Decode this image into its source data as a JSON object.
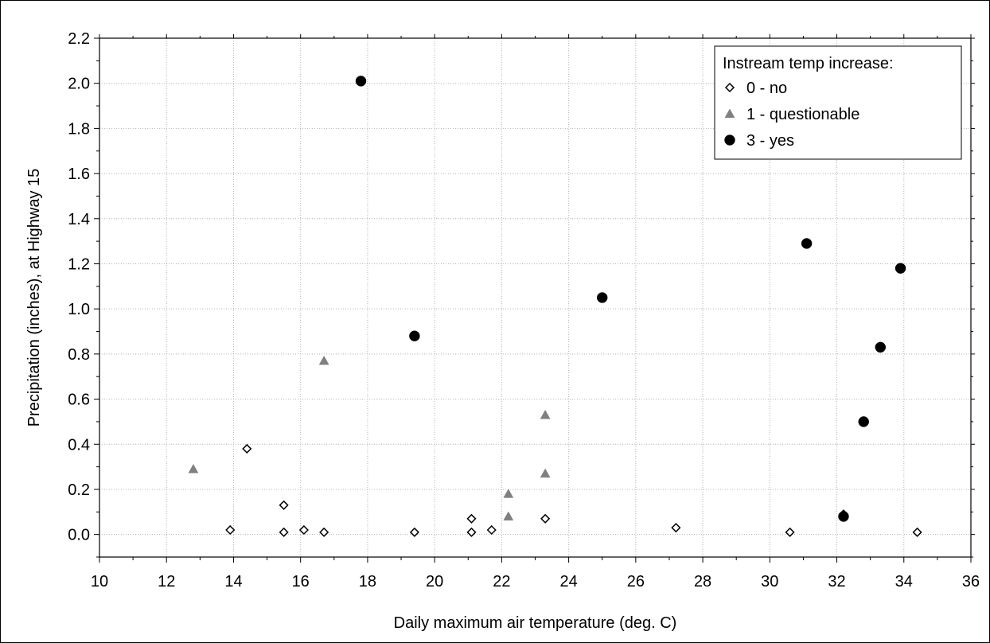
{
  "chart_data": {
    "type": "scatter",
    "title": "",
    "xlabel": "Daily maximum air temperature (deg. C)",
    "ylabel": "Precipitation (inches), at Highway 15",
    "xlim": [
      10,
      36
    ],
    "ylim": [
      -0.1,
      2.2
    ],
    "xticks": [
      "10",
      "12",
      "14",
      "16",
      "18",
      "20",
      "22",
      "24",
      "26",
      "28",
      "30",
      "32",
      "34",
      "36"
    ],
    "yticks": [
      "0.0",
      "0.2",
      "0.4",
      "0.6",
      "0.8",
      "1.0",
      "1.2",
      "1.4",
      "1.6",
      "1.8",
      "2.0",
      "2.2"
    ],
    "grid": true,
    "legend": {
      "title": "Instream temp increase:",
      "position": "top-right"
    },
    "series": [
      {
        "name": "0 - no",
        "marker": "diamond-open",
        "color": "#000000",
        "points": [
          {
            "x": 13.9,
            "y": 0.02
          },
          {
            "x": 14.4,
            "y": 0.38
          },
          {
            "x": 15.5,
            "y": 0.13
          },
          {
            "x": 15.5,
            "y": 0.01
          },
          {
            "x": 16.1,
            "y": 0.02
          },
          {
            "x": 16.7,
            "y": 0.01
          },
          {
            "x": 19.4,
            "y": 0.01
          },
          {
            "x": 21.1,
            "y": 0.07
          },
          {
            "x": 21.1,
            "y": 0.01
          },
          {
            "x": 21.7,
            "y": 0.02
          },
          {
            "x": 23.3,
            "y": 0.07
          },
          {
            "x": 27.2,
            "y": 0.03
          },
          {
            "x": 30.6,
            "y": 0.01
          },
          {
            "x": 32.2,
            "y": 0.09
          },
          {
            "x": 34.4,
            "y": 0.01
          }
        ]
      },
      {
        "name": "1 - questionable",
        "marker": "triangle",
        "color": "#808080",
        "points": [
          {
            "x": 12.8,
            "y": 0.29
          },
          {
            "x": 16.7,
            "y": 0.77
          },
          {
            "x": 22.2,
            "y": 0.18
          },
          {
            "x": 22.2,
            "y": 0.08
          },
          {
            "x": 23.3,
            "y": 0.53
          },
          {
            "x": 23.3,
            "y": 0.27
          }
        ]
      },
      {
        "name": "3 - yes",
        "marker": "circle",
        "color": "#000000",
        "points": [
          {
            "x": 17.8,
            "y": 2.01
          },
          {
            "x": 19.4,
            "y": 0.88
          },
          {
            "x": 25.0,
            "y": 1.05
          },
          {
            "x": 31.1,
            "y": 1.29
          },
          {
            "x": 32.2,
            "y": 0.08
          },
          {
            "x": 32.8,
            "y": 0.5
          },
          {
            "x": 33.3,
            "y": 0.83
          },
          {
            "x": 33.9,
            "y": 1.18
          }
        ]
      }
    ]
  }
}
